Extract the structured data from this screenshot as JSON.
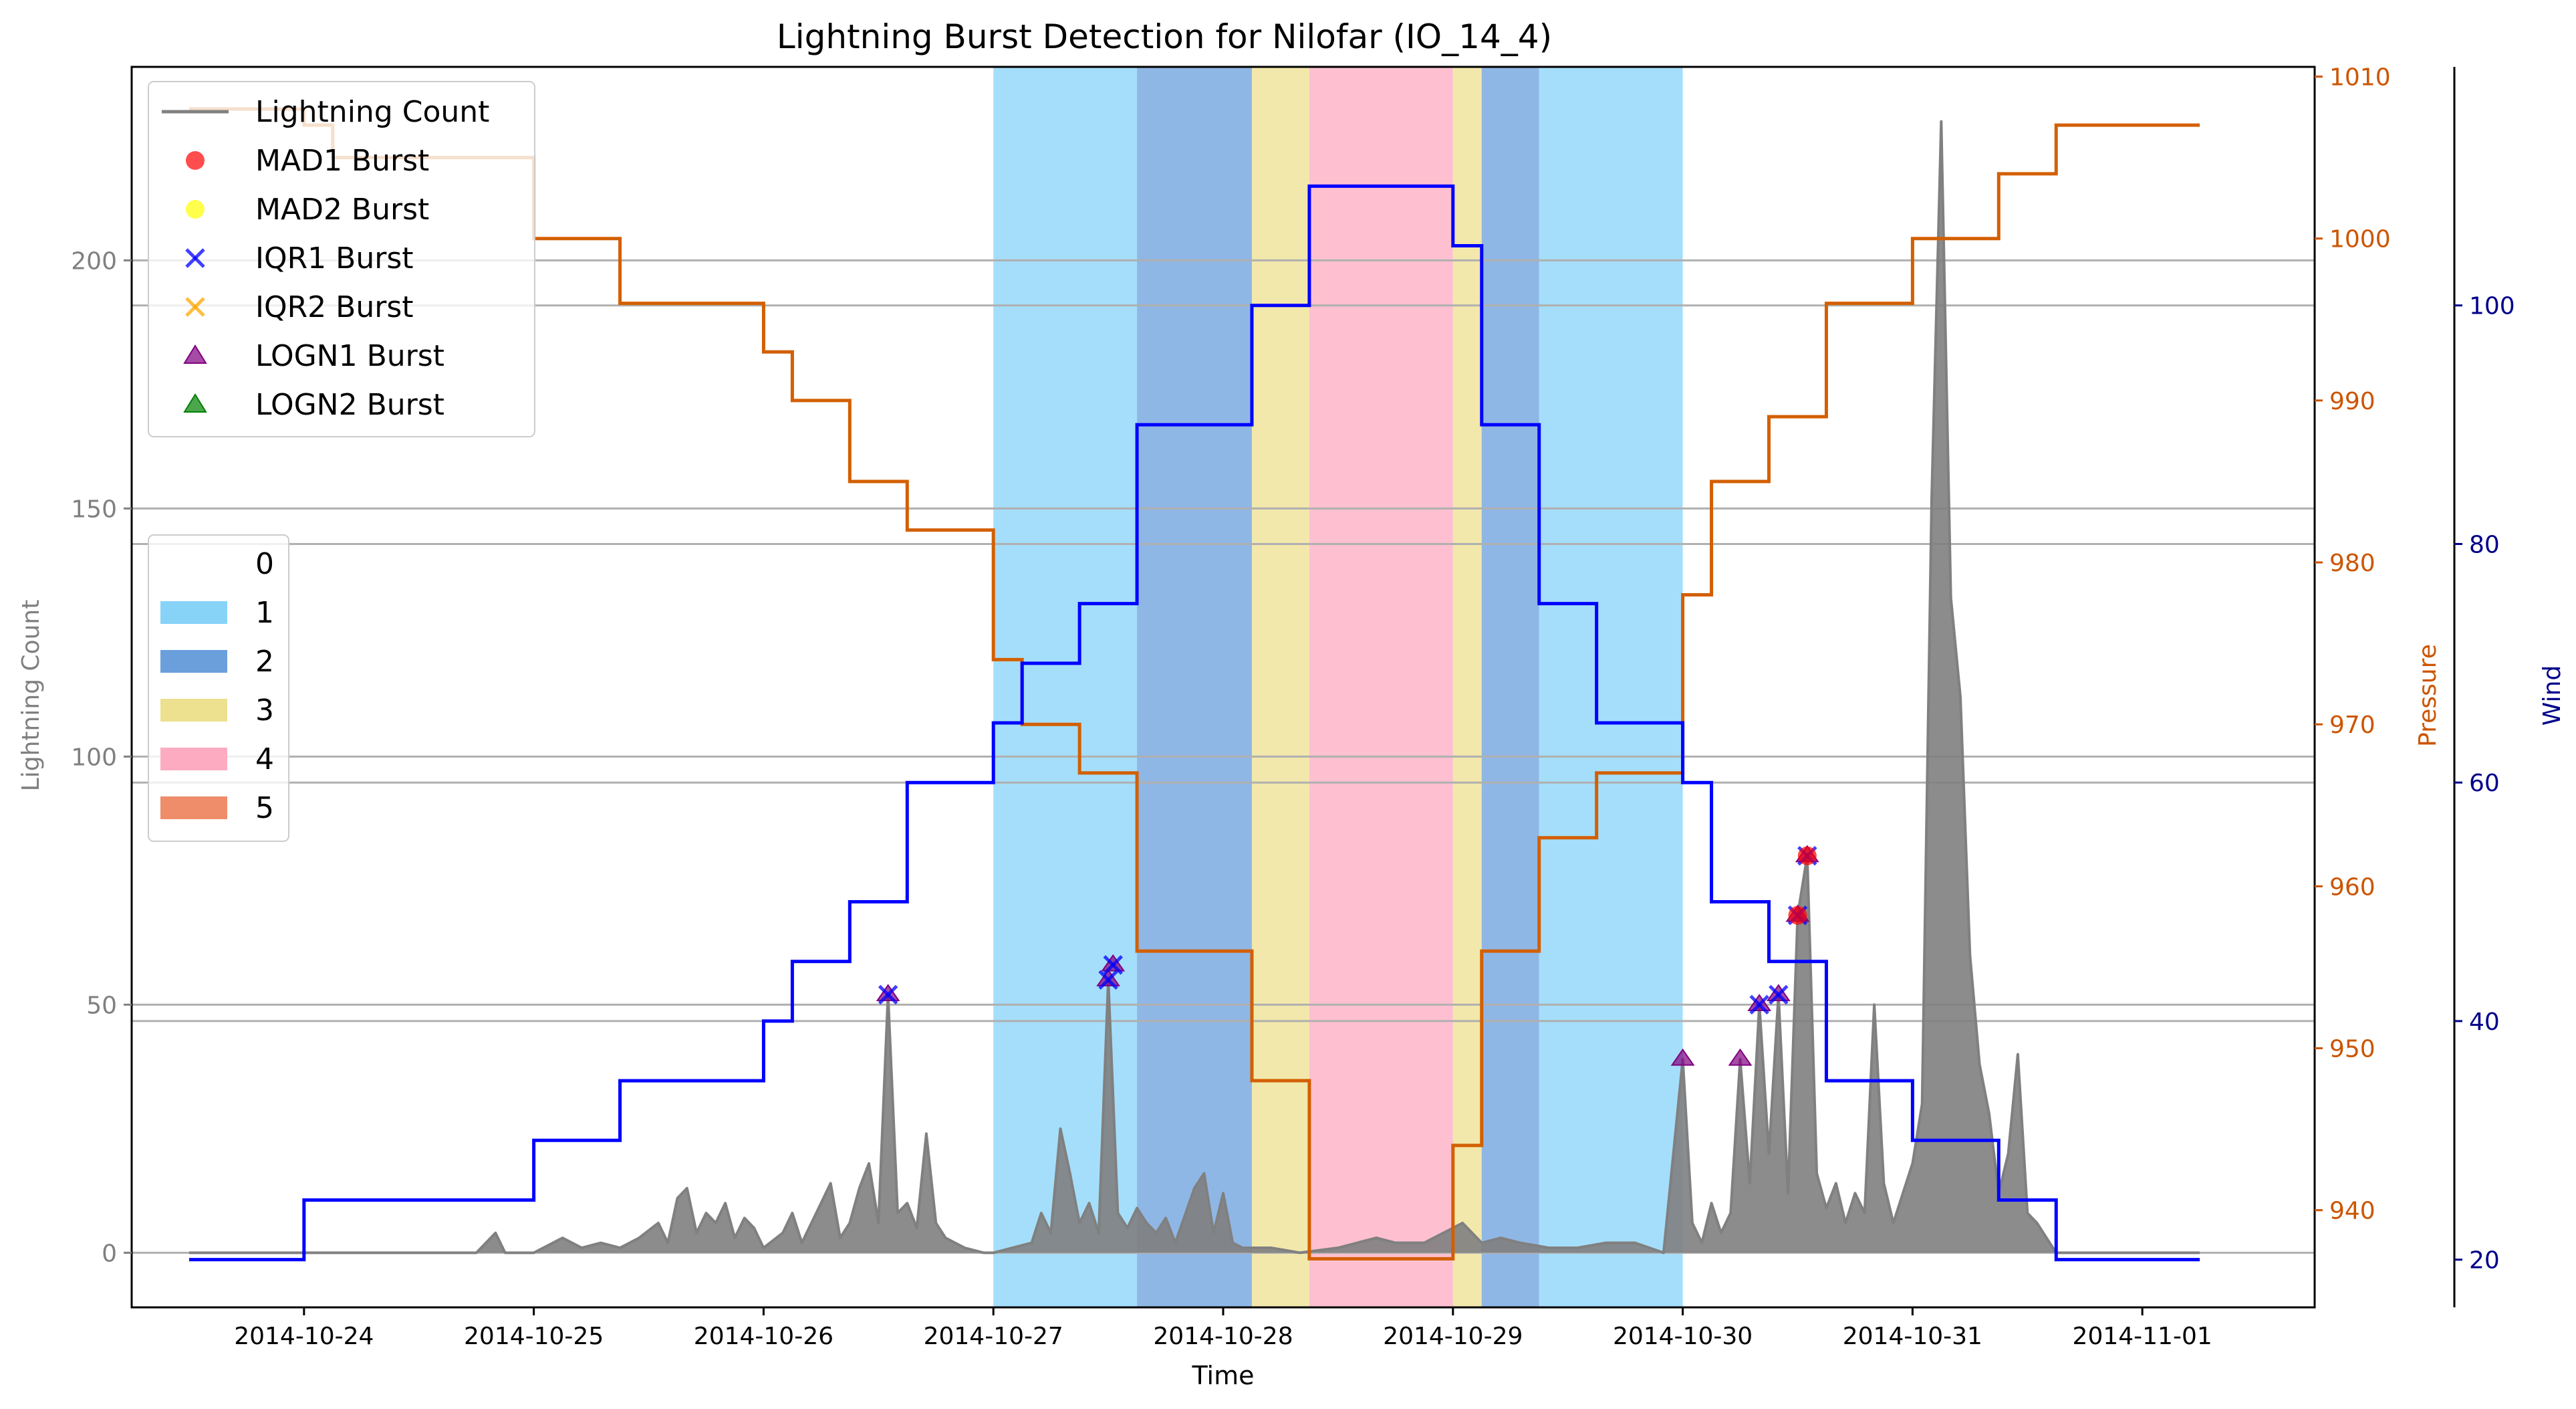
{
  "chart_data": {
    "type": "line",
    "title": "Lightning Burst Detection for Nilofar (IO_14_4)",
    "xlabel": "Time",
    "ylabel": "Lightning Count",
    "y2label": "Pressure",
    "y3label": "Wind",
    "grid": true,
    "legend_position": "top-left",
    "x_ticks": [
      "2014-10-24",
      "2014-10-25",
      "2014-10-26",
      "2014-10-27",
      "2014-10-28",
      "2014-10-29",
      "2014-10-30",
      "2014-10-31",
      "2014-11-01"
    ],
    "y_ticks": [
      0,
      50,
      100,
      150,
      200
    ],
    "y2_ticks": [
      940,
      950,
      960,
      970,
      980,
      990,
      1000,
      1010
    ],
    "y3_ticks": [
      20,
      40,
      60,
      80,
      100
    ],
    "xlim": [
      "2014-10-23T06:00",
      "2014-11-01T18:00"
    ],
    "ylim": [
      -11,
      239
    ],
    "y2lim": [
      934,
      1010.6
    ],
    "y3lim": [
      16,
      120
    ],
    "colors": {
      "lightning": "#808080",
      "pressure": "#d35f00",
      "wind": "#0000ff",
      "pressure_axis": "#cc5500",
      "wind_axis": "#00008b",
      "mad1": "#ff0000",
      "mad2": "#ffff00",
      "iqr1": "#0000ff",
      "iqr2": "#ffa500",
      "logn1": "#800080",
      "logn2": "#008000"
    },
    "legend_series": [
      {
        "name": "Lightning Count",
        "marker": "line"
      },
      {
        "name": "MAD1 Burst",
        "marker": "circle",
        "color": "#ff0000"
      },
      {
        "name": "MAD2 Burst",
        "marker": "circle",
        "color": "#ffff00"
      },
      {
        "name": "IQR1 Burst",
        "marker": "x",
        "color": "#0000ff"
      },
      {
        "name": "IQR2 Burst",
        "marker": "x",
        "color": "#ffa500"
      },
      {
        "name": "LOGN1 Burst",
        "marker": "triangle",
        "color": "#800080"
      },
      {
        "name": "LOGN2 Burst",
        "marker": "triangle",
        "color": "#008000"
      }
    ],
    "legend_categories": [
      {
        "name": "0",
        "color": "#ffffff"
      },
      {
        "name": "1",
        "color": "#87d3f8"
      },
      {
        "name": "2",
        "color": "#6a9fdc"
      },
      {
        "name": "3",
        "color": "#ede08f"
      },
      {
        "name": "4",
        "color": "#fdabc1"
      },
      {
        "name": "5",
        "color": "#ef8c6a"
      }
    ],
    "category_bands": [
      {
        "category": "1",
        "start": "2014-10-27T00:00",
        "end": "2014-10-27T15:00"
      },
      {
        "category": "2",
        "start": "2014-10-27T15:00",
        "end": "2014-10-28T03:00"
      },
      {
        "category": "3",
        "start": "2014-10-28T03:00",
        "end": "2014-10-28T09:00"
      },
      {
        "category": "4",
        "start": "2014-10-28T09:00",
        "end": "2014-10-29T00:00"
      },
      {
        "category": "3",
        "start": "2014-10-29T00:00",
        "end": "2014-10-29T03:00"
      },
      {
        "category": "2",
        "start": "2014-10-29T03:00",
        "end": "2014-10-29T09:00"
      },
      {
        "category": "1",
        "start": "2014-10-29T09:00",
        "end": "2014-10-30T00:00"
      }
    ],
    "pressure": [
      [
        "2014-10-23T12:00",
        1008
      ],
      [
        "2014-10-24T00:00",
        1007
      ],
      [
        "2014-10-24T03:00",
        1005
      ],
      [
        "2014-10-25T00:00",
        1000
      ],
      [
        "2014-10-25T09:00",
        996
      ],
      [
        "2014-10-26T00:00",
        993
      ],
      [
        "2014-10-26T03:00",
        990
      ],
      [
        "2014-10-26T09:00",
        985
      ],
      [
        "2014-10-26T15:00",
        982
      ],
      [
        "2014-10-27T00:00",
        974
      ],
      [
        "2014-10-27T03:00",
        970
      ],
      [
        "2014-10-27T09:00",
        967
      ],
      [
        "2014-10-27T15:00",
        956
      ],
      [
        "2014-10-28T03:00",
        948
      ],
      [
        "2014-10-28T09:00",
        937
      ],
      [
        "2014-10-29T00:00",
        944
      ],
      [
        "2014-10-29T03:00",
        956
      ],
      [
        "2014-10-29T09:00",
        963
      ],
      [
        "2014-10-29T15:00",
        967
      ],
      [
        "2014-10-30T00:00",
        978
      ],
      [
        "2014-10-30T03:00",
        985
      ],
      [
        "2014-10-30T09:00",
        989
      ],
      [
        "2014-10-30T15:00",
        996
      ],
      [
        "2014-10-31T00:00",
        1000
      ],
      [
        "2014-10-31T09:00",
        1004
      ],
      [
        "2014-10-31T15:00",
        1007
      ],
      [
        "2014-11-01T06:00",
        1007
      ]
    ],
    "wind": [
      [
        "2014-10-23T12:00",
        20
      ],
      [
        "2014-10-24T00:00",
        25
      ],
      [
        "2014-10-25T00:00",
        30
      ],
      [
        "2014-10-25T09:00",
        35
      ],
      [
        "2014-10-26T00:00",
        40
      ],
      [
        "2014-10-26T03:00",
        45
      ],
      [
        "2014-10-26T09:00",
        50
      ],
      [
        "2014-10-26T15:00",
        60
      ],
      [
        "2014-10-27T00:00",
        65
      ],
      [
        "2014-10-27T03:00",
        70
      ],
      [
        "2014-10-27T09:00",
        75
      ],
      [
        "2014-10-27T15:00",
        90
      ],
      [
        "2014-10-28T03:00",
        100
      ],
      [
        "2014-10-28T09:00",
        110
      ],
      [
        "2014-10-29T00:00",
        105
      ],
      [
        "2014-10-29T03:00",
        90
      ],
      [
        "2014-10-29T09:00",
        75
      ],
      [
        "2014-10-29T15:00",
        65
      ],
      [
        "2014-10-30T00:00",
        60
      ],
      [
        "2014-10-30T03:00",
        50
      ],
      [
        "2014-10-30T09:00",
        45
      ],
      [
        "2014-10-30T15:00",
        35
      ],
      [
        "2014-10-31T00:00",
        30
      ],
      [
        "2014-10-31T09:00",
        25
      ],
      [
        "2014-10-31T15:00",
        20
      ],
      [
        "2014-11-01T06:00",
        20
      ]
    ],
    "lightning": [
      [
        "2014-10-23T12:00",
        0
      ],
      [
        "2014-10-24T18:00",
        0
      ],
      [
        "2014-10-24T20:00",
        4
      ],
      [
        "2014-10-24T21:00",
        0
      ],
      [
        "2014-10-25T00:00",
        0
      ],
      [
        "2014-10-25T03:00",
        3
      ],
      [
        "2014-10-25T05:00",
        1
      ],
      [
        "2014-10-25T07:00",
        2
      ],
      [
        "2014-10-25T09:00",
        1
      ],
      [
        "2014-10-25T11:00",
        3
      ],
      [
        "2014-10-25T13:00",
        6
      ],
      [
        "2014-10-25T14:00",
        2
      ],
      [
        "2014-10-25T15:00",
        11
      ],
      [
        "2014-10-25T16:00",
        13
      ],
      [
        "2014-10-25T17:00",
        4
      ],
      [
        "2014-10-25T18:00",
        8
      ],
      [
        "2014-10-25T19:00",
        6
      ],
      [
        "2014-10-25T20:00",
        10
      ],
      [
        "2014-10-25T21:00",
        3
      ],
      [
        "2014-10-25T22:00",
        7
      ],
      [
        "2014-10-25T23:00",
        5
      ],
      [
        "2014-10-26T00:00",
        1
      ],
      [
        "2014-10-26T02:00",
        4
      ],
      [
        "2014-10-26T03:00",
        8
      ],
      [
        "2014-10-26T04:00",
        2
      ],
      [
        "2014-10-26T06:00",
        10
      ],
      [
        "2014-10-26T07:00",
        14
      ],
      [
        "2014-10-26T08:00",
        3
      ],
      [
        "2014-10-26T09:00",
        6
      ],
      [
        "2014-10-26T10:00",
        13
      ],
      [
        "2014-10-26T11:00",
        18
      ],
      [
        "2014-10-26T12:00",
        6
      ],
      [
        "2014-10-26T13:00",
        52
      ],
      [
        "2014-10-26T14:00",
        8
      ],
      [
        "2014-10-26T15:00",
        10
      ],
      [
        "2014-10-26T16:00",
        5
      ],
      [
        "2014-10-26T17:00",
        24
      ],
      [
        "2014-10-26T18:00",
        6
      ],
      [
        "2014-10-26T19:00",
        3
      ],
      [
        "2014-10-26T21:00",
        1
      ],
      [
        "2014-10-26T23:00",
        0
      ],
      [
        "2014-10-27T00:00",
        0
      ],
      [
        "2014-10-27T04:00",
        2
      ],
      [
        "2014-10-27T05:00",
        8
      ],
      [
        "2014-10-27T06:00",
        4
      ],
      [
        "2014-10-27T07:00",
        25
      ],
      [
        "2014-10-27T08:00",
        16
      ],
      [
        "2014-10-27T09:00",
        6
      ],
      [
        "2014-10-27T10:00",
        10
      ],
      [
        "2014-10-27T11:00",
        4
      ],
      [
        "2014-10-27T12:00",
        55
      ],
      [
        "2014-10-27T13:00",
        8
      ],
      [
        "2014-10-27T14:00",
        5
      ],
      [
        "2014-10-27T15:00",
        9
      ],
      [
        "2014-10-27T16:00",
        6
      ],
      [
        "2014-10-27T17:00",
        4
      ],
      [
        "2014-10-27T18:00",
        7
      ],
      [
        "2014-10-27T19:00",
        2
      ],
      [
        "2014-10-27T21:00",
        13
      ],
      [
        "2014-10-27T22:00",
        16
      ],
      [
        "2014-10-27T23:00",
        4
      ],
      [
        "2014-10-28T00:00",
        12
      ],
      [
        "2014-10-28T01:00",
        2
      ],
      [
        "2014-10-28T02:00",
        1
      ],
      [
        "2014-10-28T05:00",
        1
      ],
      [
        "2014-10-28T08:00",
        0
      ],
      [
        "2014-10-28T12:00",
        1
      ],
      [
        "2014-10-28T14:00",
        2
      ],
      [
        "2014-10-28T16:00",
        3
      ],
      [
        "2014-10-28T18:00",
        2
      ],
      [
        "2014-10-28T21:00",
        2
      ],
      [
        "2014-10-29T00:00",
        5
      ],
      [
        "2014-10-29T01:00",
        6
      ],
      [
        "2014-10-29T03:00",
        2
      ],
      [
        "2014-10-29T05:00",
        3
      ],
      [
        "2014-10-29T07:00",
        2
      ],
      [
        "2014-10-29T10:00",
        1
      ],
      [
        "2014-10-29T13:00",
        1
      ],
      [
        "2014-10-29T16:00",
        2
      ],
      [
        "2014-10-29T19:00",
        2
      ],
      [
        "2014-10-29T22:00",
        0
      ],
      [
        "2014-10-30T00:00",
        39
      ],
      [
        "2014-10-30T01:00",
        6
      ],
      [
        "2014-10-30T02:00",
        2
      ],
      [
        "2014-10-30T03:00",
        10
      ],
      [
        "2014-10-30T04:00",
        4
      ],
      [
        "2014-10-30T05:00",
        8
      ],
      [
        "2014-10-30T06:00",
        39
      ],
      [
        "2014-10-30T07:00",
        14
      ],
      [
        "2014-10-30T08:00",
        50
      ],
      [
        "2014-10-30T09:00",
        20
      ],
      [
        "2014-10-30T10:00",
        52
      ],
      [
        "2014-10-30T11:00",
        12
      ],
      [
        "2014-10-30T12:00",
        68
      ],
      [
        "2014-10-30T13:00",
        80
      ],
      [
        "2014-10-30T14:00",
        16
      ],
      [
        "2014-10-30T15:00",
        9
      ],
      [
        "2014-10-30T16:00",
        14
      ],
      [
        "2014-10-30T17:00",
        6
      ],
      [
        "2014-10-30T18:00",
        12
      ],
      [
        "2014-10-30T19:00",
        8
      ],
      [
        "2014-10-30T20:00",
        50
      ],
      [
        "2014-10-30T21:00",
        14
      ],
      [
        "2014-10-30T22:00",
        6
      ],
      [
        "2014-10-30T23:00",
        12
      ],
      [
        "2014-10-31T00:00",
        18
      ],
      [
        "2014-10-31T01:00",
        30
      ],
      [
        "2014-10-31T02:00",
        152
      ],
      [
        "2014-10-31T03:00",
        228
      ],
      [
        "2014-10-31T04:00",
        132
      ],
      [
        "2014-10-31T05:00",
        112
      ],
      [
        "2014-10-31T06:00",
        60
      ],
      [
        "2014-10-31T07:00",
        38
      ],
      [
        "2014-10-31T08:00",
        28
      ],
      [
        "2014-10-31T09:00",
        12
      ],
      [
        "2014-10-31T10:00",
        20
      ],
      [
        "2014-10-31T11:00",
        40
      ],
      [
        "2014-10-31T12:00",
        8
      ],
      [
        "2014-10-31T13:00",
        6
      ],
      [
        "2014-10-31T15:00",
        0
      ],
      [
        "2014-11-01T06:00",
        0
      ]
    ],
    "bursts": {
      "MAD1": [
        [
          "2014-10-30T12:00",
          68
        ],
        [
          "2014-10-30T13:00",
          80
        ]
      ],
      "IQR1": [
        [
          "2014-10-26T13:00",
          52
        ],
        [
          "2014-10-27T12:00",
          55
        ],
        [
          "2014-10-27T12:30",
          58
        ],
        [
          "2014-10-30T08:00",
          50
        ],
        [
          "2014-10-30T10:00",
          52
        ],
        [
          "2014-10-30T12:00",
          68
        ],
        [
          "2014-10-30T13:00",
          80
        ]
      ],
      "LOGN1": [
        [
          "2014-10-26T13:00",
          52
        ],
        [
          "2014-10-27T12:00",
          55
        ],
        [
          "2014-10-27T12:30",
          58
        ],
        [
          "2014-10-30T00:00",
          39
        ],
        [
          "2014-10-30T06:00",
          39
        ],
        [
          "2014-10-30T08:00",
          50
        ],
        [
          "2014-10-30T10:00",
          52
        ],
        [
          "2014-10-30T12:00",
          68
        ],
        [
          "2014-10-30T13:00",
          80
        ]
      ]
    }
  }
}
